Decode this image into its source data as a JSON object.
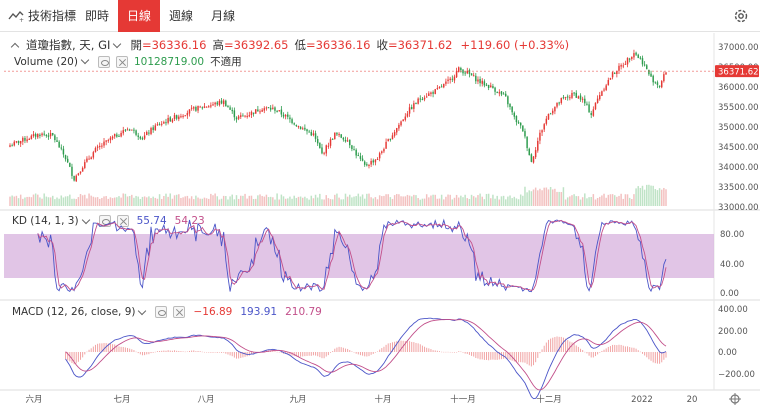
{
  "toolbar": {
    "indicator_label": "技術指標",
    "buttons": [
      {
        "label": "即時",
        "active": false
      },
      {
        "label": "日線",
        "active": true
      },
      {
        "label": "週線",
        "active": false
      },
      {
        "label": "月線",
        "active": false
      }
    ]
  },
  "legend": {
    "symbol": "道瓊指數, 天, GI",
    "open_label": "開",
    "open": "=36336.16",
    "high_label": "高",
    "high": "=36392.65",
    "low_label": "低",
    "low": "=36336.16",
    "close_label": "收",
    "close": "=36371.62",
    "change": "+119.60 (+0.33%)",
    "volume_label": "Volume (20)",
    "volume_value": "10128719.00",
    "volume_na": "不適用",
    "kd_label": "KD (14, 1, 3)",
    "kd_k": "55.74",
    "kd_d": "54.23",
    "macd_label": "MACD (12, 26, close, 9)",
    "macd_hist": "−16.89",
    "macd_line": "193.91",
    "macd_signal": "210.79"
  },
  "colors": {
    "up": "#e53935",
    "down": "#2e9c4e",
    "kd_band": "#d7b1dd",
    "k_line": "#4b55c8",
    "d_line": "#c24f8a"
  },
  "price_axis": {
    "ticks": [
      "37000.00",
      "36500.00",
      "36000.00",
      "35500.00",
      "35000.00",
      "34500.00",
      "34000.00",
      "33500.00",
      "33000.00"
    ],
    "last_price_tag": "36371.62"
  },
  "kd_axis": {
    "ticks": [
      "80.00",
      "40.00",
      "0.00"
    ]
  },
  "macd_axis": {
    "ticks": [
      "400.00",
      "200.00",
      "0.00",
      "−200.00"
    ]
  },
  "time_axis": {
    "labels": [
      "六月",
      "七月",
      "八月",
      "九月",
      "十月",
      "十一月",
      "十二月",
      "2022",
      "20"
    ]
  },
  "icons": {
    "logo": "indicator-chart-icon",
    "settings": "gear-icon",
    "goto": "goto-realtime-icon"
  }
}
